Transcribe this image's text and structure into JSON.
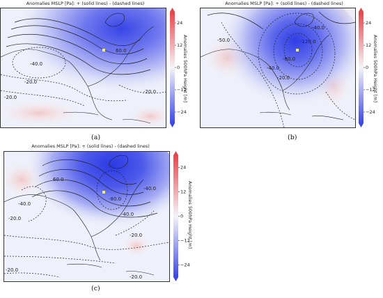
{
  "colorbar": {
    "ticks": [
      24,
      12,
      0,
      -12,
      -24
    ],
    "range": [
      -30,
      30
    ],
    "colors": {
      "neg": "#3b47e8",
      "mid": "#f4f4f8",
      "pos": "#e8454b"
    }
  },
  "panels": [
    {
      "id": "a",
      "title": "Anomalies MSLP [Pa]: + (solid lines) - (dashed lines)",
      "caption": "(a)",
      "colorbar_label": "Anomalies 500hPa Height [m]",
      "contour_labels": [
        "60.0",
        "-40.0",
        "-20.0",
        "-20.0",
        "-20.0"
      ]
    },
    {
      "id": "b",
      "title": "Anomalies MSLP [Pa]: + (solid lines) - (dashed lines)",
      "caption": "(b)",
      "colorbar_label": "Anomalies 500hPa Height [m]",
      "contour_labels": [
        "-50.0",
        "-40.0",
        "-20.0",
        "-80.0",
        "-120.0",
        "-40.0"
      ]
    },
    {
      "id": "c",
      "title": "Anomalies MSLP [Pa]: + (solid lines) - (dashed lines)",
      "caption": "(c)",
      "colorbar_label": "Anomalies 500hPa Height [m]",
      "contour_labels": [
        "60.0",
        "-40.0",
        "-80.0",
        "-40.0",
        "-20.0",
        "-20.0",
        "-20.0",
        "-20.0",
        "-40.0"
      ]
    }
  ],
  "chart_data": [
    {
      "type": "heatmap",
      "title": "Anomalies MSLP [Pa]: + (solid lines) - (dashed lines)",
      "colorbar_label": "Anomalies 500hPa Height [m]",
      "colorbar_ticks": [
        24,
        12,
        0,
        -12,
        -24
      ],
      "anomaly_centers_m": [
        {
          "sign": "negative",
          "peak": -26
        }
      ],
      "mslp_contour_labels_pa": [
        60.0,
        -40.0,
        -20.0,
        -20.0,
        -20.0
      ]
    },
    {
      "type": "heatmap",
      "title": "Anomalies MSLP [Pa]: + (solid lines) - (dashed lines)",
      "colorbar_label": "Anomalies 500hPa Height [m]",
      "colorbar_ticks": [
        24,
        12,
        0,
        -12,
        -24
      ],
      "anomaly_centers_m": [
        {
          "sign": "negative",
          "peak": -28
        },
        {
          "sign": "positive",
          "peak": 20
        }
      ],
      "mslp_contour_labels_pa": [
        -50.0,
        -40.0,
        -20.0,
        -80.0,
        -120.0,
        -40.0
      ]
    },
    {
      "type": "heatmap",
      "title": "Anomalies MSLP [Pa]: + (solid lines) - (dashed lines)",
      "colorbar_label": "Anomalies 500hPa Height [m]",
      "colorbar_ticks": [
        24,
        12,
        0,
        -12,
        -24
      ],
      "anomaly_centers_m": [
        {
          "sign": "negative",
          "peak": -30
        }
      ],
      "mslp_contour_labels_pa": [
        60.0,
        -40.0,
        -80.0,
        -40.0,
        -20.0,
        -20.0,
        -20.0,
        -20.0,
        -40.0
      ]
    }
  ]
}
